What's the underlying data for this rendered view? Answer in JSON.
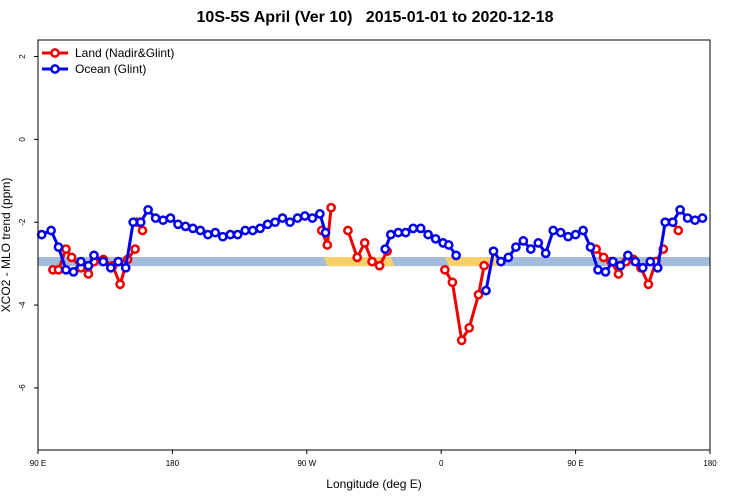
{
  "chart_data": {
    "type": "line",
    "title": "10S-5S April (Ver 10)   2015-01-01 to 2020-12-18",
    "xlabel": "Longitude (deg E)",
    "ylabel": "XCO2 - MLO trend (ppm)",
    "xlim": [
      0,
      360
    ],
    "ylim": [
      -7.5,
      2.4
    ],
    "x_ticks": [
      {
        "value": 0,
        "label": "90 E"
      },
      {
        "value": 72,
        "label": "180"
      },
      {
        "value": 144,
        "label": "90 W"
      },
      {
        "value": 216,
        "label": "0"
      },
      {
        "value": 288,
        "label": "90 E"
      },
      {
        "value": 360,
        "label": "180"
      }
    ],
    "y_ticks": [
      {
        "value": 2,
        "label": "2"
      },
      {
        "value": 0,
        "label": "0"
      },
      {
        "value": -2,
        "label": "-2"
      },
      {
        "value": -4,
        "label": "-4"
      },
      {
        "value": -6,
        "label": "-6"
      }
    ],
    "legend": {
      "position": "top-left"
    },
    "series": [
      {
        "name": "Land (Nadir&Glint)",
        "color": "#ee0000",
        "segments": [
          [
            [
              8,
              -3.15
            ],
            [
              11,
              -3.15
            ],
            [
              15,
              -2.65
            ],
            [
              18,
              -2.85
            ],
            [
              23,
              -3.1
            ],
            [
              27,
              -3.25
            ],
            [
              30,
              -2.95
            ],
            [
              35,
              -2.9
            ],
            [
              40,
              -3.05
            ],
            [
              44,
              -3.5
            ],
            [
              48,
              -2.9
            ],
            [
              52,
              -2.65
            ]
          ],
          [
            [
              53,
              -2.0
            ],
            [
              56,
              -2.2
            ]
          ],
          [
            [
              152,
              -2.2
            ],
            [
              155,
              -2.55
            ],
            [
              157,
              -1.65
            ]
          ],
          [
            [
              166,
              -2.2
            ],
            [
              171,
              -2.85
            ],
            [
              175,
              -2.5
            ],
            [
              179,
              -2.95
            ],
            [
              183,
              -3.05
            ],
            [
              187,
              -2.7
            ]
          ],
          [
            [
              218,
              -3.15
            ],
            [
              222,
              -3.45
            ],
            [
              227,
              -4.85
            ],
            [
              231,
              -4.55
            ],
            [
              236,
              -3.75
            ],
            [
              239,
              -3.05
            ]
          ],
          [
            [
              299,
              -2.65
            ],
            [
              303,
              -2.85
            ],
            [
              307,
              -2.95
            ],
            [
              311,
              -3.25
            ],
            [
              315,
              -2.95
            ],
            [
              319,
              -2.9
            ],
            [
              323,
              -3.1
            ],
            [
              327,
              -3.5
            ],
            [
              331,
              -2.95
            ],
            [
              335,
              -2.65
            ]
          ],
          [
            [
              340,
              -2.0
            ],
            [
              343,
              -2.2
            ]
          ]
        ]
      },
      {
        "name": "Ocean (Glint)",
        "color": "#0000ee",
        "segments": [
          [
            [
              2,
              -2.3
            ],
            [
              7,
              -2.2
            ],
            [
              11,
              -2.6
            ],
            [
              15,
              -3.15
            ],
            [
              19,
              -3.2
            ],
            [
              23,
              -2.95
            ],
            [
              27,
              -3.05
            ],
            [
              30,
              -2.8
            ],
            [
              35,
              -2.95
            ],
            [
              39,
              -3.1
            ],
            [
              43,
              -2.95
            ],
            [
              47,
              -3.1
            ],
            [
              51,
              -2.0
            ],
            [
              55,
              -2.0
            ],
            [
              59,
              -1.7
            ],
            [
              63,
              -1.9
            ],
            [
              67,
              -1.95
            ],
            [
              71,
              -1.9
            ],
            [
              75,
              -2.05
            ],
            [
              79,
              -2.1
            ],
            [
              83,
              -2.15
            ],
            [
              87,
              -2.2
            ],
            [
              91,
              -2.3
            ],
            [
              95,
              -2.25
            ],
            [
              99,
              -2.35
            ],
            [
              103,
              -2.3
            ],
            [
              107,
              -2.3
            ],
            [
              111,
              -2.2
            ],
            [
              115,
              -2.2
            ],
            [
              119,
              -2.15
            ],
            [
              123,
              -2.05
            ],
            [
              127,
              -2.0
            ],
            [
              131,
              -1.9
            ],
            [
              135,
              -2.0
            ],
            [
              139,
              -1.9
            ],
            [
              143,
              -1.85
            ],
            [
              147,
              -1.9
            ],
            [
              151,
              -1.8
            ],
            [
              154,
              -2.25
            ]
          ],
          [
            [
              186,
              -2.65
            ],
            [
              189,
              -2.3
            ],
            [
              193,
              -2.25
            ],
            [
              197,
              -2.25
            ],
            [
              201,
              -2.15
            ],
            [
              205,
              -2.15
            ],
            [
              209,
              -2.3
            ],
            [
              213,
              -2.4
            ],
            [
              217,
              -2.5
            ],
            [
              220,
              -2.55
            ],
            [
              224,
              -2.8
            ]
          ],
          [
            [
              240,
              -3.65
            ],
            [
              244,
              -2.7
            ],
            [
              248,
              -2.95
            ],
            [
              252,
              -2.85
            ],
            [
              256,
              -2.6
            ],
            [
              260,
              -2.45
            ],
            [
              264,
              -2.65
            ],
            [
              268,
              -2.5
            ],
            [
              272,
              -2.75
            ],
            [
              276,
              -2.2
            ],
            [
              280,
              -2.25
            ],
            [
              284,
              -2.35
            ],
            [
              288,
              -2.3
            ],
            [
              292,
              -2.2
            ],
            [
              296,
              -2.6
            ],
            [
              300,
              -3.15
            ],
            [
              304,
              -3.2
            ],
            [
              308,
              -2.95
            ],
            [
              312,
              -3.05
            ],
            [
              316,
              -2.8
            ],
            [
              320,
              -2.95
            ],
            [
              324,
              -3.1
            ],
            [
              328,
              -2.95
            ],
            [
              332,
              -3.1
            ],
            [
              336,
              -2.0
            ],
            [
              340,
              -2.0
            ],
            [
              344,
              -1.7
            ],
            [
              348,
              -1.9
            ],
            [
              352,
              -1.95
            ],
            [
              356,
              -1.9
            ]
          ]
        ]
      }
    ],
    "band": {
      "y_center": -2.95,
      "height_ppm": 0.22,
      "color": "#a3bcdb",
      "highlights": [
        {
          "x_start": 153,
          "x_end": 189,
          "color": "#f7cf6c"
        },
        {
          "x_start": 218,
          "x_end": 245,
          "color": "#f7cf6c"
        }
      ]
    }
  }
}
